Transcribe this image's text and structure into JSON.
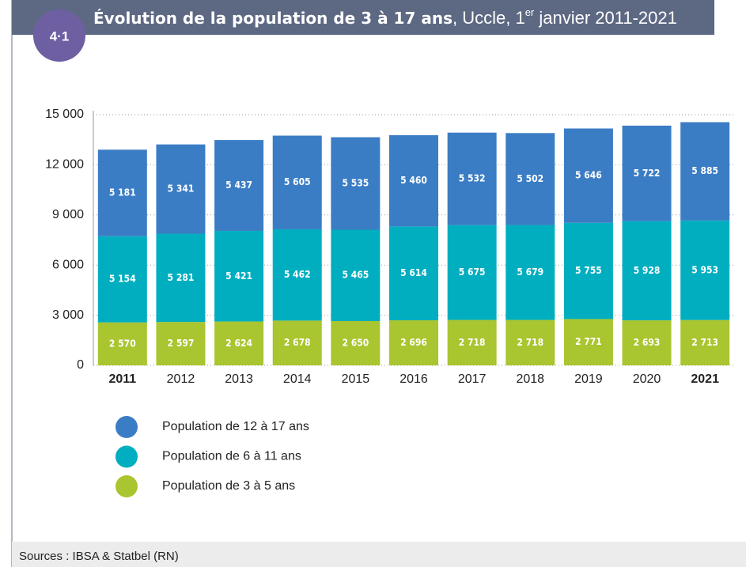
{
  "badge": "4·1",
  "chart_data": {
    "type": "stacked_bar",
    "title": {
      "bold": "Évolution de la population de 3 à 17 ans",
      "rest": ", Uccle, 1",
      "sup": "er",
      "end": " janvier 2011-2021"
    },
    "categories": [
      "2011",
      "2012",
      "2013",
      "2014",
      "2015",
      "2016",
      "2017",
      "2018",
      "2019",
      "2020",
      "2021"
    ],
    "bold_category_indices": [
      0,
      10
    ],
    "series": [
      {
        "name": "Population de 3 à 5 ans",
        "color": "#a9c52f",
        "values": [
          2570,
          2597,
          2624,
          2678,
          2650,
          2696,
          2718,
          2718,
          2771,
          2693,
          2713
        ],
        "value_labels": [
          "2 570",
          "2 597",
          "2 624",
          "2 678",
          "2 650",
          "2 696",
          "2 718",
          "2 718",
          "2 771",
          "2 693",
          "2 713"
        ]
      },
      {
        "name": "Population de 6 à 11 ans",
        "color": "#00aec0",
        "values": [
          5154,
          5281,
          5421,
          5462,
          5465,
          5614,
          5675,
          5679,
          5755,
          5928,
          5953
        ],
        "value_labels": [
          "5 154",
          "5 281",
          "5 421",
          "5 462",
          "5 465",
          "5 614",
          "5 675",
          "5 679",
          "5 755",
          "5 928",
          "5 953"
        ]
      },
      {
        "name": "Population de 12 à 17 ans",
        "color": "#3b7dc5",
        "values": [
          5181,
          5341,
          5437,
          5605,
          5535,
          5460,
          5532,
          5502,
          5646,
          5722,
          5885
        ],
        "value_labels": [
          "5 181",
          "5 341",
          "5 437",
          "5 605",
          "5 535",
          "5 460",
          "5 532",
          "5 502",
          "5 646",
          "5 722",
          "5 885"
        ]
      }
    ],
    "ylim": [
      0,
      15000
    ],
    "yticks": [
      0,
      {
        "value": 3000,
        "label": "3 000"
      },
      {
        "value": 6000,
        "label": "6 000"
      },
      {
        "value": 9000,
        "label": "9 000"
      },
      {
        "value": 12000,
        "label": "12 000"
      },
      {
        "value": 15000,
        "label": "15 000"
      }
    ],
    "grid": true
  },
  "source": "Sources : IBSA & Statbel (RN)"
}
